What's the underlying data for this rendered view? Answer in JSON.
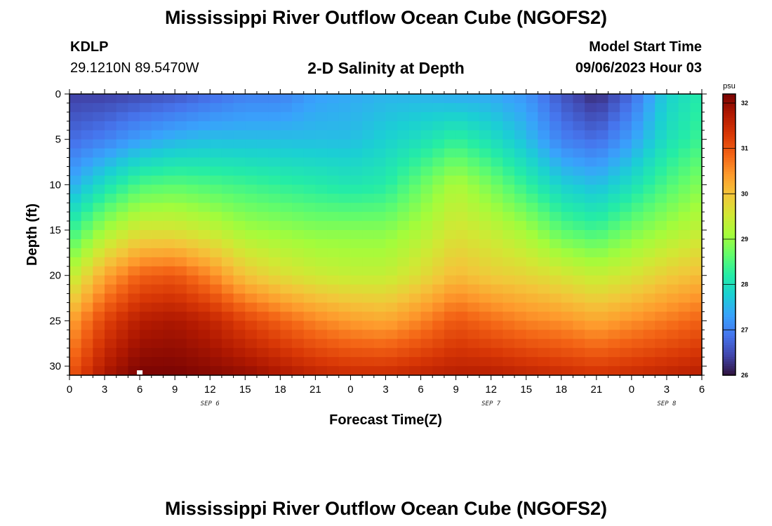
{
  "header": {
    "title": "Mississippi River Outflow Ocean Cube (NGOFS2)",
    "station_id": "KDLP",
    "station_coords": "29.1210N  89.5470W",
    "subtitle": "2-D Salinity at Depth",
    "model_start_label": "Model Start Time",
    "model_start_value": "09/06/2023 Hour 03"
  },
  "footer": {
    "title": "Mississippi River Outflow Ocean Cube (NGOFS2)"
  },
  "chart_data": {
    "type": "heatmap",
    "title": "2-D Salinity at Depth",
    "xlabel": "Forecast Time(Z)",
    "ylabel": "Depth (ft)",
    "x_tick_labels": [
      "0",
      "3",
      "6",
      "9",
      "12",
      "15",
      "18",
      "21",
      "0",
      "3",
      "6",
      "9",
      "12",
      "15",
      "18",
      "21",
      "0",
      "3",
      "6"
    ],
    "x_hours_since_sep6_00z": [
      0,
      3,
      6,
      9,
      12,
      15,
      18,
      21,
      24,
      27,
      30,
      33,
      36,
      39,
      42,
      45,
      48,
      51,
      54
    ],
    "x_range_hours": [
      0,
      54
    ],
    "date_labels": [
      {
        "text": "SEP 6",
        "hour": 12
      },
      {
        "text": "SEP 7",
        "hour": 36
      },
      {
        "text": "SEP 8",
        "hour": 51
      }
    ],
    "y_tick_labels": [
      "0",
      "5",
      "10",
      "15",
      "20",
      "25",
      "30"
    ],
    "y_ticks": [
      0,
      5,
      10,
      15,
      20,
      25,
      30
    ],
    "y_range": [
      0,
      31
    ],
    "y_inverted": true,
    "colorbar": {
      "unit": "psu",
      "min": 26,
      "max": 32.2,
      "tick_labels": [
        "26",
        "27",
        "28",
        "29",
        "30",
        "31",
        "32"
      ],
      "ticks": [
        26,
        27,
        28,
        29,
        30,
        31,
        32
      ],
      "colormap": [
        "#30123b",
        "#4145ab",
        "#4675ed",
        "#39a2fc",
        "#1bcfd4",
        "#24eca6",
        "#61fc6c",
        "#a4fc3b",
        "#d1e834",
        "#f3c63a",
        "#fe9b2d",
        "#f36315",
        "#d93806",
        "#b11901",
        "#7a0403"
      ]
    },
    "profiles": {
      "description_hours": [
        0,
        3,
        6,
        9,
        12,
        15,
        18,
        21,
        24,
        27,
        30,
        33,
        36,
        39,
        42,
        45,
        48,
        51,
        54
      ],
      "depths_ft": [
        0,
        5,
        10,
        15,
        20,
        25,
        31
      ],
      "salinity_psu": [
        [
          26.4,
          26.8,
          27.4,
          28.3,
          29.3,
          30.3,
          31.0
        ],
        [
          26.4,
          27.0,
          28.0,
          29.1,
          30.3,
          31.2,
          31.8
        ],
        [
          26.5,
          27.3,
          28.5,
          29.6,
          30.9,
          31.7,
          32.2
        ],
        [
          26.6,
          27.5,
          28.6,
          29.6,
          31.0,
          31.8,
          32.2
        ],
        [
          26.8,
          27.6,
          28.5,
          29.4,
          30.6,
          31.6,
          32.1
        ],
        [
          27.0,
          27.6,
          28.4,
          29.1,
          30.0,
          31.2,
          32.0
        ],
        [
          27.0,
          27.6,
          28.3,
          29.0,
          29.7,
          30.9,
          31.8
        ],
        [
          27.3,
          27.6,
          28.2,
          28.9,
          29.5,
          30.6,
          31.6
        ],
        [
          27.4,
          27.6,
          28.1,
          28.9,
          29.4,
          30.4,
          31.5
        ],
        [
          27.5,
          27.8,
          28.2,
          28.9,
          29.4,
          30.3,
          31.5
        ],
        [
          27.5,
          28.0,
          28.7,
          29.2,
          29.7,
          30.6,
          31.6
        ],
        [
          27.4,
          28.3,
          29.2,
          29.6,
          30.1,
          31.0,
          31.7
        ],
        [
          27.4,
          28.0,
          28.8,
          29.4,
          29.9,
          30.8,
          31.7
        ],
        [
          27.2,
          27.6,
          28.3,
          29.1,
          29.8,
          30.6,
          31.6
        ],
        [
          26.6,
          27.0,
          27.8,
          28.6,
          29.6,
          30.5,
          31.5
        ],
        [
          26.2,
          26.8,
          27.6,
          28.4,
          29.4,
          30.3,
          31.4
        ],
        [
          26.8,
          27.3,
          28.0,
          28.8,
          29.6,
          30.5,
          31.5
        ],
        [
          27.8,
          28.0,
          28.5,
          29.1,
          29.9,
          30.7,
          31.6
        ],
        [
          28.2,
          28.4,
          28.9,
          29.4,
          30.1,
          30.9,
          31.7
        ]
      ]
    }
  }
}
